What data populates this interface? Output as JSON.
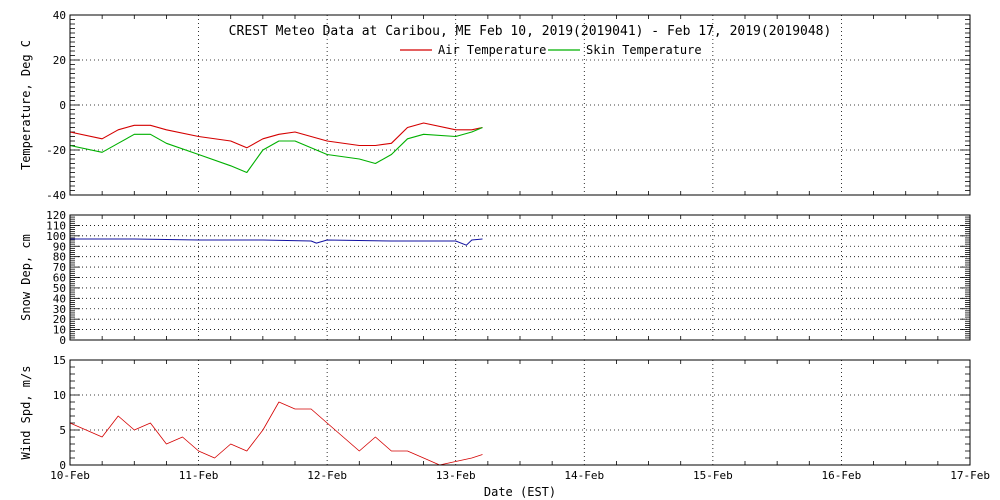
{
  "page_title": "CREST Meteo Data at Caribou, ME   Feb 10, 2019(2019041) - Feb 17, 2019(2019048)",
  "x_axis": {
    "label": "Date (EST)",
    "range": [
      "2019-02-10",
      "2019-02-17"
    ],
    "tick_labels": [
      "10-Feb",
      "11-Feb",
      "12-Feb",
      "13-Feb",
      "14-Feb",
      "15-Feb",
      "16-Feb",
      "17-Feb"
    ],
    "grid": true
  },
  "colors": {
    "air_temperature": "#d40000",
    "skin_temperature": "#00b000",
    "snow_depth": "#1010a0",
    "wind_speed": "#d40000",
    "axes": "#000000"
  },
  "legend": {
    "placement": "top-center",
    "entries": [
      "Air Temperature",
      "Skin Temperature"
    ]
  },
  "chart_data": [
    {
      "type": "line",
      "title": "CREST Meteo Data at Caribou, ME   Feb 10, 2019(2019041) - Feb 17, 2019(2019048)",
      "ylabel": "Temperature, Deg C",
      "ylim": [
        -40,
        40
      ],
      "yticks": [
        -40,
        -20,
        0,
        20,
        40
      ],
      "grid": true,
      "series": [
        {
          "name": "Air Temperature",
          "x": [
            "2019-02-10 00:00",
            "2019-02-10 06:00",
            "2019-02-10 09:00",
            "2019-02-10 12:00",
            "2019-02-10 15:00",
            "2019-02-10 18:00",
            "2019-02-11 00:00",
            "2019-02-11 06:00",
            "2019-02-11 09:00",
            "2019-02-11 12:00",
            "2019-02-11 15:00",
            "2019-02-11 18:00",
            "2019-02-12 00:00",
            "2019-02-12 06:00",
            "2019-02-12 09:00",
            "2019-02-12 12:00",
            "2019-02-12 15:00",
            "2019-02-12 18:00",
            "2019-02-13 00:00",
            "2019-02-13 03:00",
            "2019-02-13 05:00"
          ],
          "values": [
            -12,
            -15,
            -11,
            -9,
            -9,
            -11,
            -14,
            -16,
            -19,
            -15,
            -13,
            -12,
            -16,
            -18,
            -18,
            -17,
            -10,
            -8,
            -11,
            -11,
            -10
          ]
        },
        {
          "name": "Skin Temperature",
          "x": [
            "2019-02-10 00:00",
            "2019-02-10 06:00",
            "2019-02-10 09:00",
            "2019-02-10 12:00",
            "2019-02-10 15:00",
            "2019-02-10 18:00",
            "2019-02-11 00:00",
            "2019-02-11 06:00",
            "2019-02-11 09:00",
            "2019-02-11 12:00",
            "2019-02-11 15:00",
            "2019-02-11 18:00",
            "2019-02-12 00:00",
            "2019-02-12 06:00",
            "2019-02-12 09:00",
            "2019-02-12 12:00",
            "2019-02-12 15:00",
            "2019-02-12 18:00",
            "2019-02-13 00:00",
            "2019-02-13 03:00",
            "2019-02-13 05:00"
          ],
          "values": [
            -18,
            -21,
            -17,
            -13,
            -13,
            -17,
            -22,
            -27,
            -30,
            -20,
            -16,
            -16,
            -22,
            -24,
            -26,
            -22,
            -15,
            -13,
            -14,
            -12,
            -10
          ]
        }
      ]
    },
    {
      "type": "line",
      "ylabel": "Snow Dep, cm",
      "ylim": [
        0,
        120
      ],
      "yticks": [
        0,
        10,
        20,
        30,
        40,
        50,
        60,
        70,
        80,
        90,
        100,
        110,
        120
      ],
      "grid": true,
      "series": [
        {
          "x": [
            "2019-02-10 00:00",
            "2019-02-10 12:00",
            "2019-02-11 00:00",
            "2019-02-11 12:00",
            "2019-02-11 21:00",
            "2019-02-11 22:00",
            "2019-02-12 00:00",
            "2019-02-12 12:00",
            "2019-02-13 00:00",
            "2019-02-13 02:00",
            "2019-02-13 03:00",
            "2019-02-13 05:00"
          ],
          "values": [
            97,
            97,
            96,
            96,
            95,
            93,
            96,
            95,
            95,
            91,
            96,
            97
          ]
        }
      ]
    },
    {
      "type": "line",
      "xlabel": "Date (EST)",
      "ylabel": "Wind Spd, m/s",
      "ylim": [
        0,
        15
      ],
      "yticks": [
        0,
        5,
        10,
        15
      ],
      "grid": true,
      "series": [
        {
          "x": [
            "2019-02-10 00:00",
            "2019-02-10 03:00",
            "2019-02-10 06:00",
            "2019-02-10 09:00",
            "2019-02-10 12:00",
            "2019-02-10 15:00",
            "2019-02-10 18:00",
            "2019-02-10 21:00",
            "2019-02-11 00:00",
            "2019-02-11 03:00",
            "2019-02-11 06:00",
            "2019-02-11 09:00",
            "2019-02-11 12:00",
            "2019-02-11 15:00",
            "2019-02-11 18:00",
            "2019-02-11 21:00",
            "2019-02-12 00:00",
            "2019-02-12 03:00",
            "2019-02-12 06:00",
            "2019-02-12 09:00",
            "2019-02-12 12:00",
            "2019-02-12 15:00",
            "2019-02-12 18:00",
            "2019-02-12 21:00",
            "2019-02-13 00:00",
            "2019-02-13 03:00",
            "2019-02-13 05:00"
          ],
          "values": [
            6,
            5,
            4,
            7,
            5,
            6,
            3,
            4,
            2,
            1,
            3,
            2,
            5,
            9,
            8,
            8,
            6,
            4,
            2,
            4,
            2,
            2,
            1,
            0,
            0.5,
            1,
            1.5
          ]
        }
      ]
    }
  ]
}
